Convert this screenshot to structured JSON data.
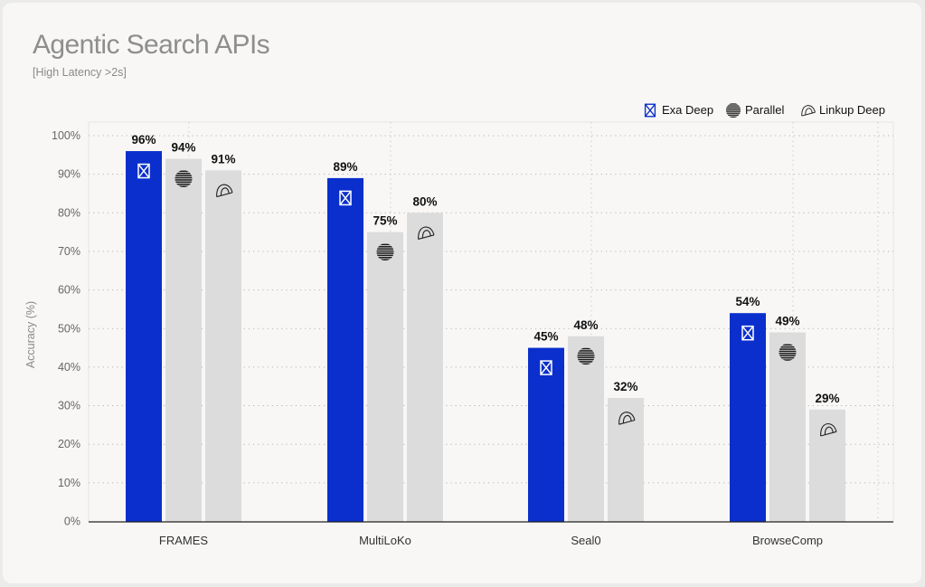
{
  "chart_data": {
    "type": "bar",
    "title": "Agentic Search APIs",
    "subtitle": "[High Latency >2s]",
    "ylabel": "Accuracy (%)",
    "xlabel": "",
    "ylim": [
      0,
      100
    ],
    "yticks": [
      "0%",
      "10%",
      "20%",
      "30%",
      "40%",
      "50%",
      "60%",
      "70%",
      "80%",
      "90%",
      "100%"
    ],
    "grid": true,
    "legend_position": "top-right",
    "categories": [
      "FRAMES",
      "MultiLoKo",
      "Seal0",
      "BrowseComp"
    ],
    "series": [
      {
        "name": "Exa Deep",
        "values": [
          96,
          89,
          45,
          54
        ],
        "labels": [
          "96%",
          "89%",
          "45%",
          "54%"
        ],
        "color": "#0a2fcc",
        "icon": "exa-hourglass-icon"
      },
      {
        "name": "Parallel",
        "values": [
          94,
          75,
          48,
          49
        ],
        "labels": [
          "94%",
          "75%",
          "48%",
          "49%"
        ],
        "color": "#dcdcdc",
        "icon": "parallel-striped-circle-icon"
      },
      {
        "name": "Linkup Deep",
        "values": [
          91,
          80,
          32,
          29
        ],
        "labels": [
          "91%",
          "80%",
          "32%",
          "29%"
        ],
        "color": "#dcdcdc",
        "icon": "linkup-arch-icon"
      }
    ]
  }
}
